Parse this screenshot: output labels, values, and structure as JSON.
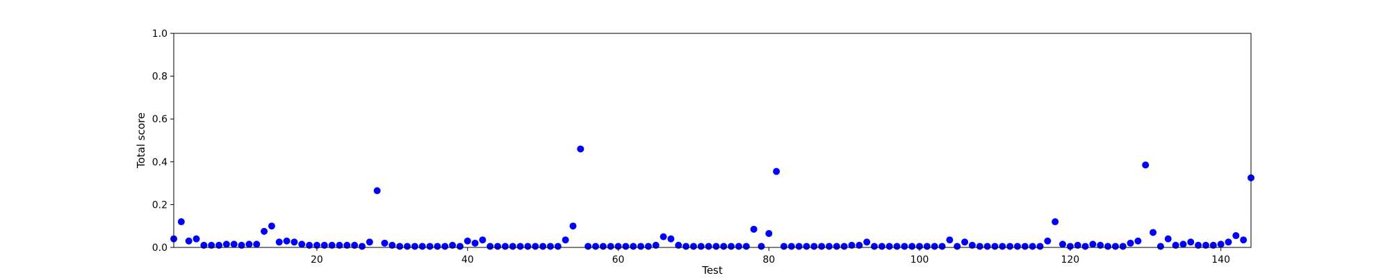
{
  "chart_data": {
    "type": "scatter",
    "xlabel": "Test",
    "ylabel": "Total score",
    "xlim": [
      1,
      144
    ],
    "ylim": [
      0,
      1.0
    ],
    "x_ticks": [
      20,
      40,
      60,
      80,
      100,
      120,
      140
    ],
    "y_ticks": [
      0.0,
      0.2,
      0.4,
      0.6,
      0.8,
      1.0
    ],
    "x_tick_labels": [
      "20",
      "40",
      "60",
      "80",
      "100",
      "120",
      "140"
    ],
    "y_tick_labels": [
      "0.0",
      "0.2",
      "0.4",
      "0.6",
      "0.8",
      "1.0"
    ],
    "grid": false,
    "marker_color": "#0000ff",
    "x": [
      1,
      2,
      3,
      4,
      5,
      6,
      7,
      8,
      9,
      10,
      11,
      12,
      13,
      14,
      15,
      16,
      17,
      18,
      19,
      20,
      21,
      22,
      23,
      24,
      25,
      26,
      27,
      28,
      29,
      30,
      31,
      32,
      33,
      34,
      35,
      36,
      37,
      38,
      39,
      40,
      41,
      42,
      43,
      44,
      45,
      46,
      47,
      48,
      49,
      50,
      51,
      52,
      53,
      54,
      55,
      56,
      57,
      58,
      59,
      60,
      61,
      62,
      63,
      64,
      65,
      66,
      67,
      68,
      69,
      70,
      71,
      72,
      73,
      74,
      75,
      76,
      77,
      78,
      79,
      80,
      81,
      82,
      83,
      84,
      85,
      86,
      87,
      88,
      89,
      90,
      91,
      92,
      93,
      94,
      95,
      96,
      97,
      98,
      99,
      100,
      101,
      102,
      103,
      104,
      105,
      106,
      107,
      108,
      109,
      110,
      111,
      112,
      113,
      114,
      115,
      116,
      117,
      118,
      119,
      120,
      121,
      122,
      123,
      124,
      125,
      126,
      127,
      128,
      129,
      130,
      131,
      132,
      133,
      134,
      135,
      136,
      137,
      138,
      139,
      140,
      141,
      142,
      143,
      144
    ],
    "y": [
      0.04,
      0.12,
      0.03,
      0.04,
      0.01,
      0.01,
      0.01,
      0.015,
      0.015,
      0.01,
      0.015,
      0.015,
      0.075,
      0.1,
      0.025,
      0.03,
      0.025,
      0.015,
      0.01,
      0.01,
      0.01,
      0.01,
      0.01,
      0.01,
      0.01,
      0.005,
      0.025,
      0.265,
      0.02,
      0.01,
      0.005,
      0.005,
      0.005,
      0.005,
      0.005,
      0.005,
      0.005,
      0.01,
      0.005,
      0.03,
      0.02,
      0.035,
      0.005,
      0.005,
      0.005,
      0.005,
      0.005,
      0.005,
      0.005,
      0.005,
      0.005,
      0.005,
      0.035,
      0.1,
      0.46,
      0.005,
      0.005,
      0.005,
      0.005,
      0.005,
      0.005,
      0.005,
      0.005,
      0.005,
      0.01,
      0.05,
      0.04,
      0.01,
      0.005,
      0.005,
      0.005,
      0.005,
      0.005,
      0.005,
      0.005,
      0.005,
      0.005,
      0.085,
      0.005,
      0.065,
      0.355,
      0.005,
      0.005,
      0.005,
      0.005,
      0.005,
      0.005,
      0.005,
      0.005,
      0.005,
      0.01,
      0.01,
      0.025,
      0.005,
      0.005,
      0.005,
      0.005,
      0.005,
      0.005,
      0.005,
      0.005,
      0.005,
      0.005,
      0.035,
      0.005,
      0.025,
      0.01,
      0.005,
      0.005,
      0.005,
      0.005,
      0.005,
      0.005,
      0.005,
      0.005,
      0.005,
      0.03,
      0.12,
      0.015,
      0.005,
      0.01,
      0.005,
      0.015,
      0.01,
      0.005,
      0.005,
      0.005,
      0.02,
      0.03,
      0.385,
      0.07,
      0.005,
      0.04,
      0.01,
      0.015,
      0.025,
      0.01,
      0.01,
      0.01,
      0.015,
      0.025,
      0.055,
      0.035,
      0.325
    ]
  }
}
